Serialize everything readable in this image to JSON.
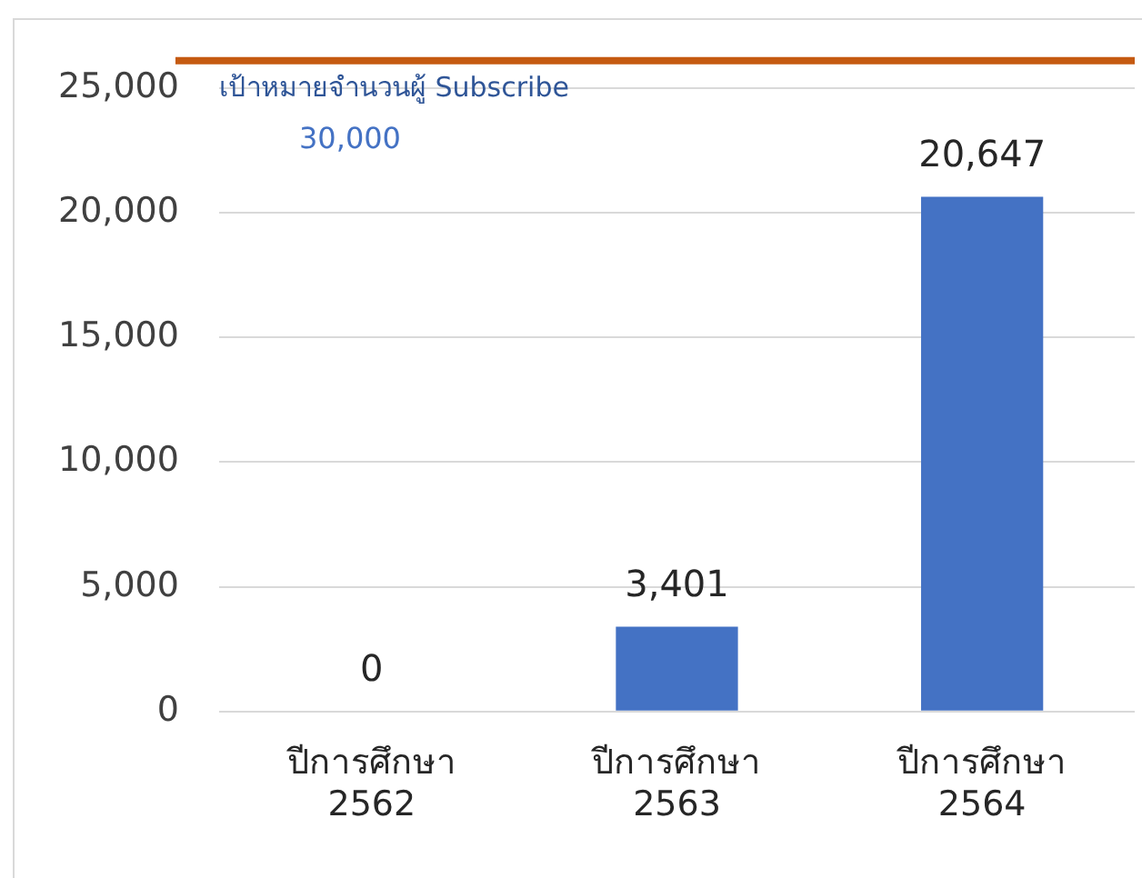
{
  "chart_data": {
    "type": "bar",
    "categories": [
      "ปีการศึกษา 2562",
      "ปีการศึกษา 2563",
      "ปีการศึกษา 2564"
    ],
    "values": [
      0,
      3401,
      20647
    ],
    "value_labels": [
      "0",
      "3,401",
      "20,647"
    ],
    "color": "#4472c4",
    "ylim": [
      0,
      26100
    ],
    "yticks": [
      0,
      {
        "value": 5000,
        "label": "5,000"
      },
      {
        "value": 10000,
        "label": "10,000"
      },
      {
        "value": 15000,
        "label": "15,000"
      },
      {
        "value": 20000,
        "label": "20,000"
      },
      {
        "value": 25000,
        "label": "25,000"
      }
    ],
    "grid": "y",
    "ref_lines": [
      {
        "axis": "y",
        "value": 26100,
        "label": "เป้าหมายจำนวนผู้ Subscribe",
        "color": "#c55a11"
      }
    ],
    "annotations": [
      "30,000"
    ]
  }
}
